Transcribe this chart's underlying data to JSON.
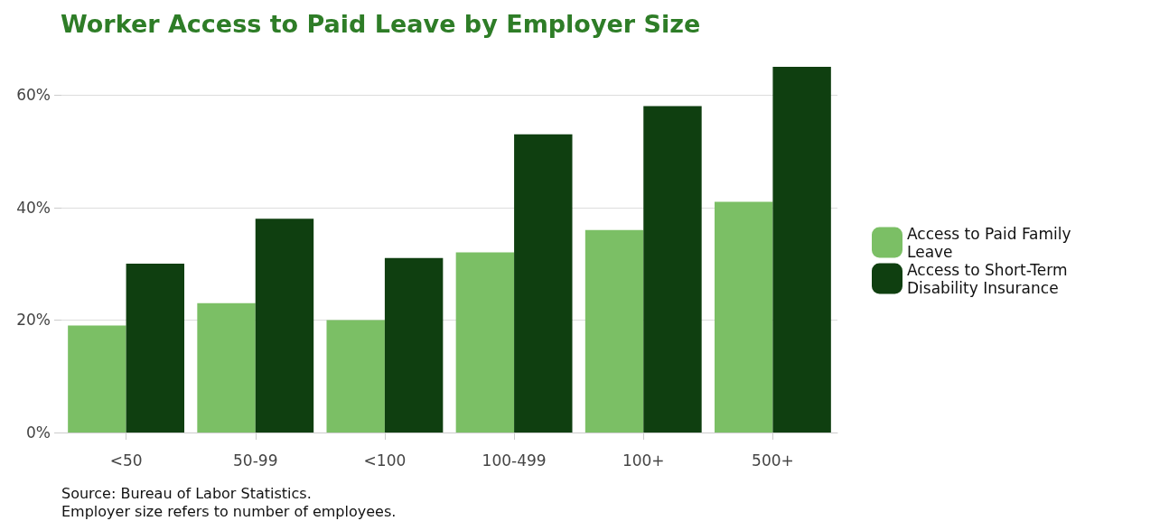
{
  "chart_data": {
    "type": "bar",
    "title": "Worker Access to Paid Leave by Employer Size",
    "categories": [
      "<50",
      "50-99",
      "<100",
      "100-499",
      "100+",
      "500+"
    ],
    "series": [
      {
        "name": "Access to Paid Family Leave",
        "color": "#7bbf65",
        "values": [
          19,
          23,
          20,
          32,
          36,
          41
        ]
      },
      {
        "name": "Access to Short-Term Disability Insurance",
        "color": "#0f3f10",
        "values": [
          30,
          38,
          31,
          53,
          58,
          65
        ]
      }
    ],
    "ylim": [
      0,
      65
    ],
    "yticks": [
      {
        "value": 0,
        "label": "0%"
      },
      {
        "value": 20,
        "label": "20%"
      },
      {
        "value": 40,
        "label": "40%"
      },
      {
        "value": 60,
        "label": "60%"
      }
    ],
    "grid": "y",
    "legend": "right",
    "annotations": [
      "Source: Bureau of Labor Statistics.",
      "Employer size refers to number of employees."
    ]
  }
}
